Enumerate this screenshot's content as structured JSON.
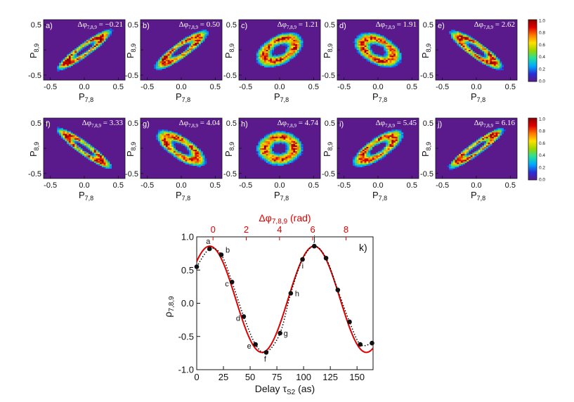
{
  "colors": {
    "background": "#5a1a8c",
    "fit_curve": "#e00000",
    "dotted_curve": "#000000",
    "top_axis": "#e00000"
  },
  "colorbar": {
    "stops": [
      "#5a1a8c",
      "#2a2fd6",
      "#00a8ff",
      "#22e0a0",
      "#9ad600",
      "#ffe000",
      "#ff7a00",
      "#e00000",
      "#8b0000"
    ],
    "ticks": [
      "1.0",
      "0.8",
      "0.6",
      "0.4",
      "0.2",
      "0.0"
    ]
  },
  "panel_axes": {
    "xlabel": "P",
    "xlabel_sub": "7,8",
    "ylabel": "P",
    "ylabel_sub": "8,9",
    "x_ticks": [
      "-0.5",
      "0.0",
      "0.5"
    ],
    "y_ticks": [
      "0.5",
      "0.0",
      "-0.5"
    ],
    "phase_prefix": "Δφ",
    "phase_sub": "7,8,9"
  },
  "chart_data": [
    {
      "type": "heatmap",
      "title": "Δφ7,8,9 = −0.21",
      "panel": "a)",
      "phase_value": "−0.21",
      "xlabel": "P7,8",
      "ylabel": "P8,9",
      "xlim": [
        -0.6,
        0.6
      ],
      "ylim": [
        -0.6,
        0.6
      ],
      "phi": -0.21
    },
    {
      "type": "heatmap",
      "title": "Δφ7,8,9 = 0.50",
      "panel": "b)",
      "phase_value": "0.50",
      "xlabel": "P7,8",
      "ylabel": "P8,9",
      "xlim": [
        -0.6,
        0.6
      ],
      "ylim": [
        -0.6,
        0.6
      ],
      "phi": 0.5
    },
    {
      "type": "heatmap",
      "title": "Δφ7,8,9 = 1.21",
      "panel": "c)",
      "phase_value": "1.21",
      "xlabel": "P7,8",
      "ylabel": "P8,9",
      "xlim": [
        -0.6,
        0.6
      ],
      "ylim": [
        -0.6,
        0.6
      ],
      "phi": 1.21
    },
    {
      "type": "heatmap",
      "title": "Δφ7,8,9 = 1.91",
      "panel": "d)",
      "phase_value": "1.91",
      "xlabel": "P7,8",
      "ylabel": "P8,9",
      "xlim": [
        -0.6,
        0.6
      ],
      "ylim": [
        -0.6,
        0.6
      ],
      "phi": 1.91
    },
    {
      "type": "heatmap",
      "title": "Δφ7,8,9 = 2.62",
      "panel": "e)",
      "phase_value": "2.62",
      "xlabel": "P7,8",
      "ylabel": "P8,9",
      "xlim": [
        -0.6,
        0.6
      ],
      "ylim": [
        -0.6,
        0.6
      ],
      "phi": 2.62
    },
    {
      "type": "heatmap",
      "title": "Δφ7,8,9 = 3.33",
      "panel": "f)",
      "phase_value": "3.33",
      "xlabel": "P7,8",
      "ylabel": "P8,9",
      "xlim": [
        -0.6,
        0.6
      ],
      "ylim": [
        -0.6,
        0.6
      ],
      "phi": 3.33
    },
    {
      "type": "heatmap",
      "title": "Δφ7,8,9 = 4.04",
      "panel": "g)",
      "phase_value": "4.04",
      "xlabel": "P7,8",
      "ylabel": "P8,9",
      "xlim": [
        -0.6,
        0.6
      ],
      "ylim": [
        -0.6,
        0.6
      ],
      "phi": 4.04
    },
    {
      "type": "heatmap",
      "title": "Δφ7,8,9 = 4.74",
      "panel": "h)",
      "phase_value": "4.74",
      "xlabel": "P7,8",
      "ylabel": "P8,9",
      "xlim": [
        -0.6,
        0.6
      ],
      "ylim": [
        -0.6,
        0.6
      ],
      "phi": 4.74
    },
    {
      "type": "heatmap",
      "title": "Δφ7,8,9 = 5.45",
      "panel": "i)",
      "phase_value": "5.45",
      "xlabel": "P7,8",
      "ylabel": "P8,9",
      "xlim": [
        -0.6,
        0.6
      ],
      "ylim": [
        -0.6,
        0.6
      ],
      "phi": 5.45
    },
    {
      "type": "heatmap",
      "title": "Δφ7,8,9 = 6.16",
      "panel": "j)",
      "phase_value": "6.16",
      "xlabel": "P7,8",
      "ylabel": "P8,9",
      "xlim": [
        -0.6,
        0.6
      ],
      "ylim": [
        -0.6,
        0.6
      ],
      "phi": 6.16
    },
    {
      "type": "scatter",
      "panel": "k)",
      "xlabel": "Delay τ",
      "xlabel_sub": "S2",
      "xlabel_unit": "(as)",
      "ylabel": "ρ",
      "ylabel_sub": "7,8,9",
      "top_xlabel": "Δφ",
      "top_xlabel_sub": "7,8,9",
      "top_xlabel_unit": "(rad)",
      "xlim": [
        0,
        165
      ],
      "ylim": [
        -1.0,
        1.0
      ],
      "x_ticks": [
        "0",
        "25",
        "50",
        "75",
        "100",
        "125",
        "150"
      ],
      "y_ticks": [
        "1.0",
        "0.5",
        "0.0",
        "-0.5",
        "-1.0"
      ],
      "top_ticks": [
        "0",
        "2",
        "4",
        "6",
        "8"
      ],
      "top_tick_values": [
        0,
        2,
        4,
        6,
        8
      ],
      "x": [
        0,
        12,
        23,
        33,
        44,
        55,
        65,
        78,
        88,
        99,
        110,
        121,
        132,
        143,
        153,
        164
      ],
      "y": [
        0.55,
        0.82,
        0.73,
        0.32,
        -0.2,
        -0.62,
        -0.74,
        -0.45,
        0.15,
        0.66,
        0.86,
        0.68,
        0.2,
        -0.28,
        -0.62,
        -0.6
      ],
      "point_labels": [
        {
          "label": "a",
          "x": 12,
          "y": 0.82
        },
        {
          "label": "b",
          "x": 23,
          "y": 0.73
        },
        {
          "label": "c",
          "x": 33,
          "y": 0.32
        },
        {
          "label": "d",
          "x": 44,
          "y": -0.2
        },
        {
          "label": "e",
          "x": 55,
          "y": -0.62
        },
        {
          "label": "f",
          "x": 65,
          "y": -0.74
        },
        {
          "label": "g",
          "x": 78,
          "y": -0.45
        },
        {
          "label": "h",
          "x": 88,
          "y": 0.15
        },
        {
          "label": "i",
          "x": 99,
          "y": 0.66
        },
        {
          "label": "j",
          "x": 110,
          "y": 0.86
        }
      ],
      "fit": {
        "amplitude": 0.8,
        "phase_per_as": 0.0643,
        "phase_offset": -0.78,
        "offset": 0.06
      },
      "phase_axis": {
        "phase_at_zero_delay": -0.98,
        "rad_per_as": 0.0643
      }
    }
  ]
}
